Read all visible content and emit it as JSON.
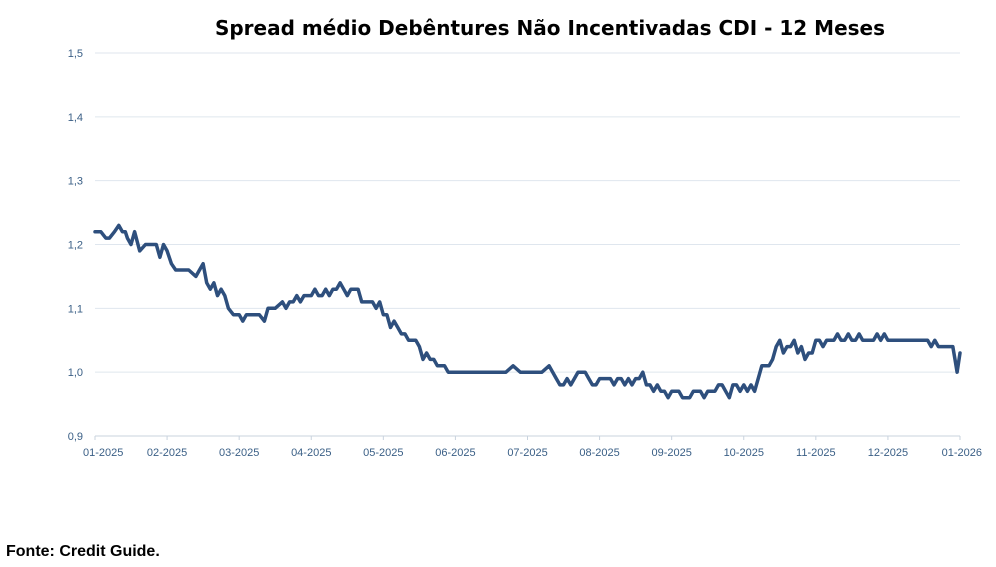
{
  "chart_data": {
    "type": "line",
    "title": "Spread médio Debêntures Não Incentivadas CDI -  12 Meses",
    "xlabel": "",
    "ylabel": "",
    "ylim": [
      0.9,
      1.5
    ],
    "y_ticks": [
      "0,9",
      "1,0",
      "1,1",
      "1,2",
      "1,3",
      "1,4",
      "1,5"
    ],
    "x_ticks": [
      "01-2025",
      "02-2025",
      "03-2025",
      "04-2025",
      "05-2025",
      "06-2025",
      "07-2025",
      "08-2025",
      "09-2025",
      "10-2025",
      "11-2025",
      "12-2025",
      "01-2026"
    ],
    "grid": true,
    "legend": "none",
    "series_color": "#2e4f7d",
    "series": [
      {
        "name": "Spread médio",
        "x_months": [
          0.0,
          0.08,
          0.15,
          0.2,
          0.27,
          0.33,
          0.38,
          0.42,
          0.45,
          0.5,
          0.55,
          0.62,
          0.7,
          0.78,
          0.85,
          0.9,
          0.95,
          1.0,
          1.06,
          1.12,
          1.2,
          1.3,
          1.4,
          1.45,
          1.5,
          1.55,
          1.6,
          1.65,
          1.7,
          1.75,
          1.8,
          1.85,
          1.92,
          2.0,
          2.05,
          2.1,
          2.15,
          2.2,
          2.28,
          2.35,
          2.4,
          2.5,
          2.6,
          2.65,
          2.7,
          2.75,
          2.8,
          2.85,
          2.9,
          2.95,
          3.0,
          3.05,
          3.1,
          3.15,
          3.2,
          3.25,
          3.3,
          3.35,
          3.4,
          3.45,
          3.5,
          3.55,
          3.6,
          3.65,
          3.7,
          3.75,
          3.8,
          3.85,
          3.9,
          3.95,
          4.0,
          4.05,
          4.1,
          4.15,
          4.2,
          4.25,
          4.3,
          4.35,
          4.4,
          4.45,
          4.5,
          4.55,
          4.6,
          4.65,
          4.7,
          4.75,
          4.8,
          4.85,
          4.9,
          4.95,
          5.0,
          5.05,
          5.1,
          5.15,
          5.2,
          5.25,
          5.3,
          5.35,
          5.4,
          5.45,
          5.5,
          5.55,
          5.6,
          5.65,
          5.7,
          5.8,
          5.9,
          6.0,
          6.1,
          6.2,
          6.3,
          6.4,
          6.45,
          6.5,
          6.55,
          6.6,
          6.7,
          6.8,
          6.85,
          6.9,
          6.95,
          7.0,
          7.05,
          7.1,
          7.15,
          7.2,
          7.25,
          7.3,
          7.35,
          7.4,
          7.45,
          7.5,
          7.55,
          7.6,
          7.65,
          7.7,
          7.75,
          7.8,
          7.85,
          7.9,
          7.95,
          8.0,
          8.05,
          8.1,
          8.15,
          8.2,
          8.25,
          8.3,
          8.35,
          8.4,
          8.45,
          8.5,
          8.55,
          8.6,
          8.65,
          8.7,
          8.75,
          8.8,
          8.85,
          8.9,
          8.95,
          9.0,
          9.05,
          9.1,
          9.15,
          9.2,
          9.25,
          9.3,
          9.35,
          9.4,
          9.45,
          9.5,
          9.55,
          9.6,
          9.65,
          9.7,
          9.75,
          9.8,
          9.85,
          9.9,
          9.95,
          10.0,
          10.05,
          10.1,
          10.15,
          10.2,
          10.25,
          10.3,
          10.35,
          10.4,
          10.45,
          10.5,
          10.55,
          10.6,
          10.65,
          10.7,
          10.75,
          10.8,
          10.85,
          10.9,
          10.95,
          11.0,
          11.1,
          11.2,
          11.3,
          11.4,
          11.5,
          11.55,
          11.6,
          11.65,
          11.7,
          11.75,
          11.8,
          11.85,
          11.9,
          11.93,
          11.96,
          12.0
        ],
        "values": [
          1.22,
          1.22,
          1.21,
          1.21,
          1.22,
          1.23,
          1.22,
          1.22,
          1.21,
          1.2,
          1.22,
          1.19,
          1.2,
          1.2,
          1.2,
          1.18,
          1.2,
          1.19,
          1.17,
          1.16,
          1.16,
          1.16,
          1.15,
          1.16,
          1.17,
          1.14,
          1.13,
          1.14,
          1.12,
          1.13,
          1.12,
          1.1,
          1.09,
          1.09,
          1.08,
          1.09,
          1.09,
          1.09,
          1.09,
          1.08,
          1.1,
          1.1,
          1.11,
          1.1,
          1.11,
          1.11,
          1.12,
          1.11,
          1.12,
          1.12,
          1.12,
          1.13,
          1.12,
          1.12,
          1.13,
          1.12,
          1.13,
          1.13,
          1.14,
          1.13,
          1.12,
          1.13,
          1.13,
          1.13,
          1.11,
          1.11,
          1.11,
          1.11,
          1.1,
          1.11,
          1.09,
          1.09,
          1.07,
          1.08,
          1.07,
          1.06,
          1.06,
          1.05,
          1.05,
          1.05,
          1.04,
          1.02,
          1.03,
          1.02,
          1.02,
          1.01,
          1.01,
          1.01,
          1.0,
          1.0,
          1.0,
          1.0,
          1.0,
          1.0,
          1.0,
          1.0,
          1.0,
          1.0,
          1.0,
          1.0,
          1.0,
          1.0,
          1.0,
          1.0,
          1.0,
          1.01,
          1.0,
          1.0,
          1.0,
          1.0,
          1.01,
          0.99,
          0.98,
          0.98,
          0.99,
          0.98,
          1.0,
          1.0,
          0.99,
          0.98,
          0.98,
          0.99,
          0.99,
          0.99,
          0.99,
          0.98,
          0.99,
          0.99,
          0.98,
          0.99,
          0.98,
          0.99,
          0.99,
          1.0,
          0.98,
          0.98,
          0.97,
          0.98,
          0.97,
          0.97,
          0.96,
          0.97,
          0.97,
          0.97,
          0.96,
          0.96,
          0.96,
          0.97,
          0.97,
          0.97,
          0.96,
          0.97,
          0.97,
          0.97,
          0.98,
          0.98,
          0.97,
          0.96,
          0.98,
          0.98,
          0.97,
          0.98,
          0.97,
          0.98,
          0.97,
          0.99,
          1.01,
          1.01,
          1.01,
          1.02,
          1.04,
          1.05,
          1.03,
          1.04,
          1.04,
          1.05,
          1.03,
          1.04,
          1.02,
          1.03,
          1.03,
          1.05,
          1.05,
          1.04,
          1.05,
          1.05,
          1.05,
          1.06,
          1.05,
          1.05,
          1.06,
          1.05,
          1.05,
          1.06,
          1.05,
          1.05,
          1.05,
          1.05,
          1.06,
          1.05,
          1.06,
          1.05,
          1.05,
          1.05,
          1.05,
          1.05,
          1.05,
          1.05,
          1.04,
          1.05,
          1.04,
          1.04,
          1.04,
          1.04,
          1.04,
          1.02,
          1.0,
          1.03
        ]
      }
    ]
  },
  "footer": {
    "source": "Fonte: Credit Guide."
  }
}
